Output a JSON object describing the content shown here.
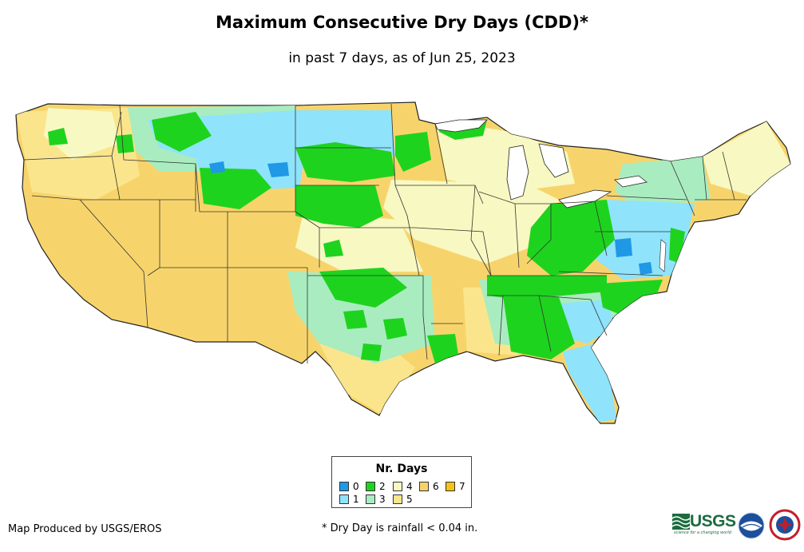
{
  "title": "Maximum Consecutive Dry Days (CDD)*",
  "subtitle": "in past 7 days, as of Jun 25, 2023",
  "legend": {
    "title": "Nr. Days",
    "items": [
      {
        "label": "0",
        "color": "#1f98e6"
      },
      {
        "label": "1",
        "color": "#8fe3fb"
      },
      {
        "label": "2",
        "color": "#1ed31e"
      },
      {
        "label": "3",
        "color": "#a9ecc0"
      },
      {
        "label": "4",
        "color": "#f8f8c2"
      },
      {
        "label": "5",
        "color": "#fbe58c"
      },
      {
        "label": "6",
        "color": "#f7d46b"
      },
      {
        "label": "7",
        "color": "#f5c317"
      }
    ]
  },
  "footer": {
    "credit": "Map Produced by USGS/EROS",
    "note": "* Dry Day is rainfall < 0.04 in."
  },
  "logos": {
    "usgs": "USGS",
    "usgs_tagline": "science for a changing world",
    "noaa": "noaa",
    "nws": "NATIONAL WEATHER SERVICE"
  },
  "colors": {
    "land_border": "#222222",
    "state_border": "#333333"
  }
}
